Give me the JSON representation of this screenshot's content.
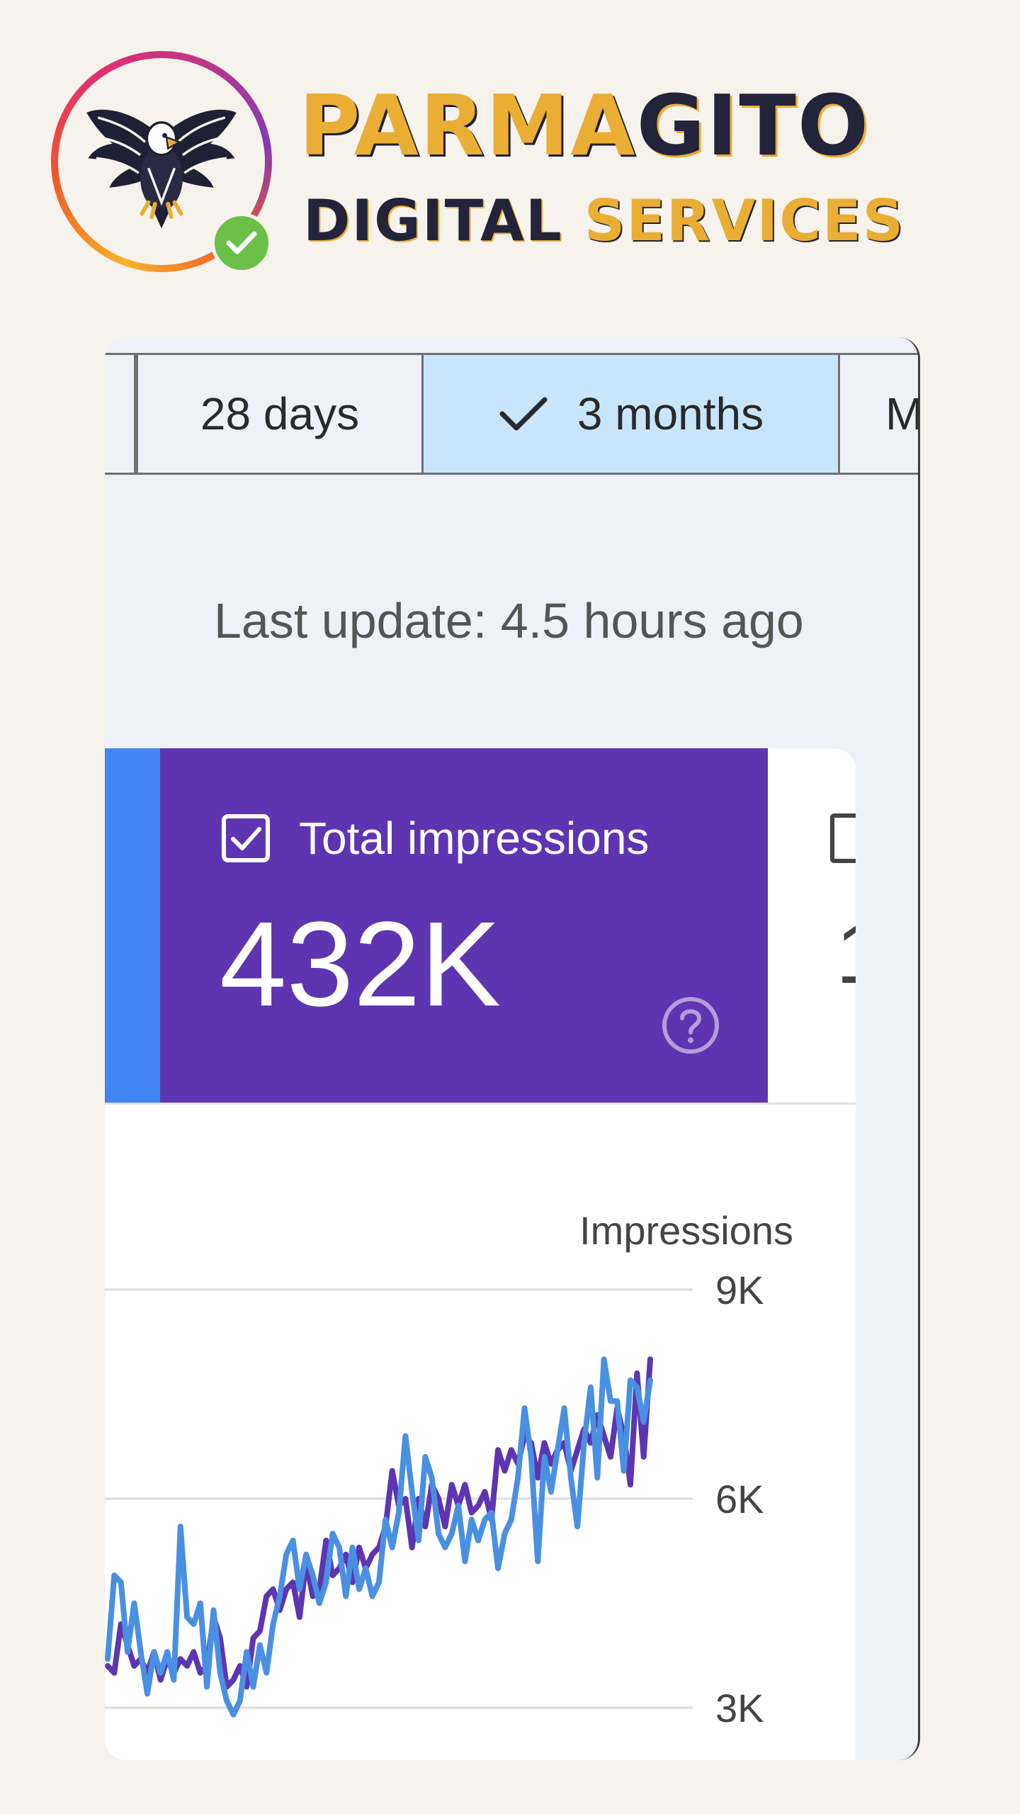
{
  "brand": {
    "word1_part1": "PARMA",
    "word1_part2": "GITO",
    "word2_part1": "DIGITAL",
    "word2_part2": "SERVICES"
  },
  "tabs": {
    "first_label": "",
    "t28_label": "28 days",
    "t3m_label": "3 months",
    "partial_label": "M"
  },
  "last_update": "Last update: 4.5 hours ago",
  "metric": {
    "label": "Total impressions",
    "value": "432K",
    "next_value_partial": "1"
  },
  "colors": {
    "accent_purple": "#5e35b1",
    "accent_blue": "#4285f4",
    "line_current": "#4a90e2",
    "line_previous": "#5e35b1",
    "selected_tab": "#c9e5fb"
  },
  "chart_data": {
    "type": "line",
    "ylabel": "Impressions",
    "ylim": [
      3000,
      9000
    ],
    "yticks": [
      "9K",
      "6K",
      "3K"
    ],
    "ytick_values": [
      9000,
      6000,
      3000
    ],
    "series": [
      {
        "name": "",
        "color": "#4a90e2",
        "values": [
          3700,
          4900,
          4800,
          3800,
          4500,
          3800,
          3200,
          3800,
          3500,
          3800,
          3400,
          5600,
          4300,
          4200,
          4500,
          3300,
          4400,
          3500,
          3100,
          2900,
          3100,
          3800,
          3300,
          3900,
          3500,
          4200,
          4600,
          5200,
          5400,
          4700,
          5200,
          4900,
          4500,
          4800,
          5500,
          5300,
          4600,
          5300,
          4700,
          5000,
          4600,
          4800,
          5700,
          5300,
          5800,
          6900,
          6100,
          5400,
          6600,
          6300,
          5500,
          5300,
          5500,
          5900,
          5100,
          5700,
          5400,
          5700,
          5800,
          5000,
          5500,
          5700,
          6300,
          7300,
          6600,
          5100,
          6600,
          6100,
          6700,
          7300,
          6300,
          5600,
          6800,
          7600,
          6300,
          8000,
          7400,
          7400,
          6400,
          7700,
          7600,
          7100,
          7700
        ]
      },
      {
        "name": "",
        "color": "#5e35b1",
        "values": [
          3600,
          3500,
          4200,
          3900,
          3600,
          3700,
          3500,
          3800,
          3400,
          3700,
          3500,
          3700,
          3600,
          3800,
          3500,
          3600,
          4300,
          4000,
          3300,
          3400,
          3600,
          3300,
          4000,
          4100,
          4600,
          4700,
          4400,
          4700,
          4800,
          4300,
          5100,
          4600,
          4700,
          5400,
          4900,
          5000,
          5200,
          4800,
          5300,
          5000,
          5200,
          5300,
          5600,
          6400,
          5900,
          6000,
          5300,
          6000,
          5600,
          6200,
          6000,
          5600,
          6200,
          5900,
          6200,
          5800,
          5900,
          6100,
          5700,
          6700,
          6400,
          6700,
          6500,
          6900,
          6800,
          6300,
          6800,
          6500,
          6700,
          6800,
          6400,
          6700,
          7000,
          6800,
          7200,
          6900,
          6600,
          7300,
          6900,
          6200,
          7800,
          6600,
          8000
        ]
      }
    ]
  }
}
